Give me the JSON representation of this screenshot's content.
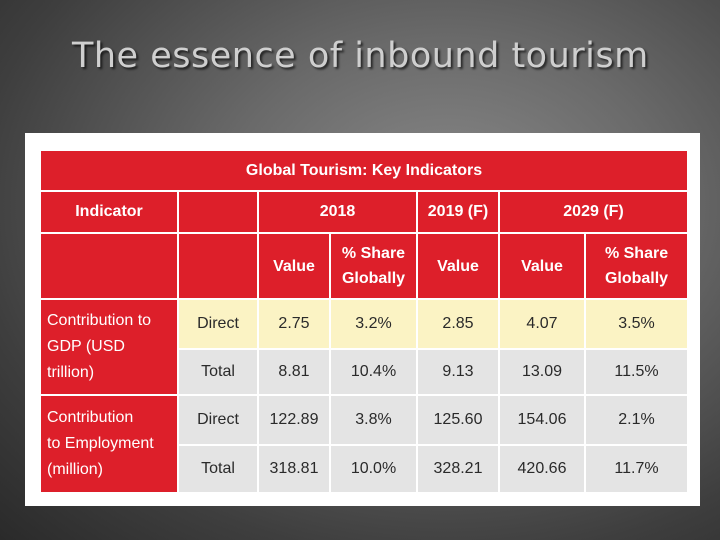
{
  "slide": {
    "title": "The essence of inbound tourism"
  },
  "table": {
    "title": "Global Tourism: Key Indicators",
    "indicator_label": "Indicator",
    "years": [
      "2018",
      "2019 (F)",
      "2029 (F)"
    ],
    "subheaders": {
      "value": "Value",
      "share_line1": "% Share",
      "share_line2": "Globally"
    },
    "groups": [
      {
        "label_line1": "Contribution to",
        "label_line2": "GDP (USD trillion)",
        "label_line3": "",
        "rows": [
          {
            "type": "Direct",
            "cells": [
              "2.75",
              "3.2%",
              "2.85",
              "4.07",
              "3.5%"
            ]
          },
          {
            "type": "Total",
            "cells": [
              "8.81",
              "10.4%",
              "9.13",
              "13.09",
              "11.5%"
            ]
          }
        ]
      },
      {
        "label_line1": "Contribution",
        "label_line2": "to Employment",
        "label_line3": "(million)",
        "rows": [
          {
            "type": "Direct",
            "cells": [
              "122.89",
              "3.8%",
              "125.60",
              "154.06",
              "2.1%"
            ]
          },
          {
            "type": "Total",
            "cells": [
              "318.81",
              "10.0%",
              "328.21",
              "420.66",
              "11.7%"
            ]
          }
        ]
      }
    ]
  },
  "colors": {
    "header_red": "#dd1f2a",
    "highlight_row": "#fbf3c4",
    "data_grey": "#e4e4e4",
    "title_text": "#cfcfcf"
  }
}
